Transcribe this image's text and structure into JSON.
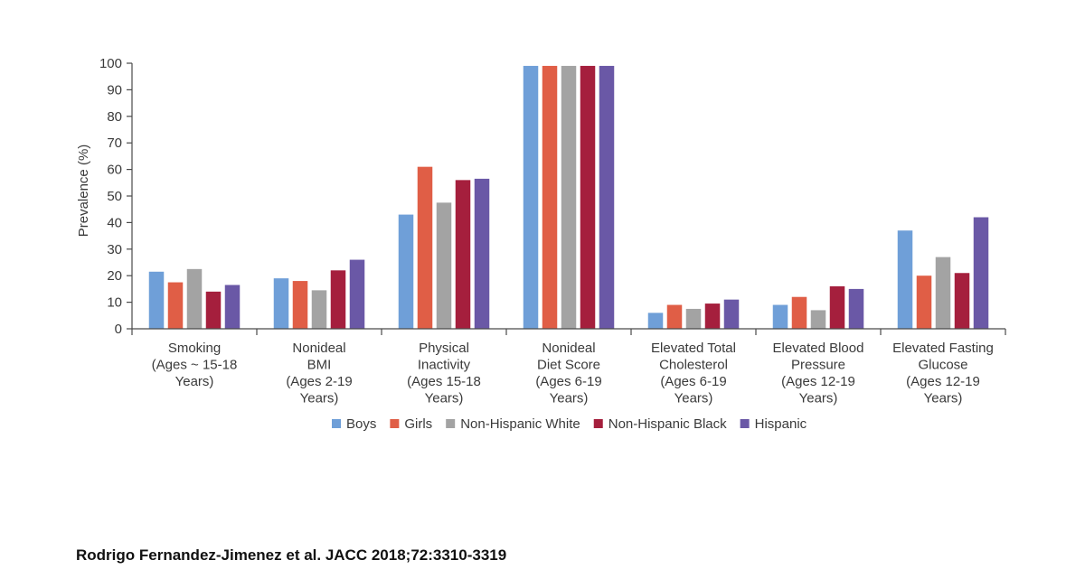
{
  "chart_data": {
    "type": "bar",
    "title": "",
    "xlabel": "",
    "ylabel": "Prevalence (%)",
    "ylim": [
      0,
      100
    ],
    "yticks": [
      0,
      10,
      20,
      30,
      40,
      50,
      60,
      70,
      80,
      90,
      100
    ],
    "grid": false,
    "legend_position": "bottom",
    "categories": [
      [
        "Smoking",
        "(Ages ~ 15-18",
        "Years)"
      ],
      [
        "Nonideal",
        "BMI",
        "(Ages 2-19",
        "Years)"
      ],
      [
        "Physical",
        "Inactivity",
        "(Ages 15-18",
        "Years)"
      ],
      [
        "Nonideal",
        "Diet Score",
        "(Ages 6-19",
        "Years)"
      ],
      [
        "Elevated Total",
        "Cholesterol",
        "(Ages 6-19",
        "Years)"
      ],
      [
        "Elevated Blood",
        "Pressure",
        "(Ages 12-19",
        "Years)"
      ],
      [
        "Elevated Fasting",
        "Glucose",
        "(Ages 12-19",
        "Years)"
      ]
    ],
    "series": [
      {
        "name": "Boys",
        "color": "#6f9fd8",
        "values": [
          21.5,
          19,
          43,
          99,
          6,
          9,
          37
        ]
      },
      {
        "name": "Girls",
        "color": "#e05e46",
        "values": [
          17.5,
          18,
          61,
          99,
          9,
          12,
          20
        ]
      },
      {
        "name": "Non-Hispanic White",
        "color": "#a3a3a3",
        "values": [
          22.5,
          14.5,
          47.5,
          99,
          7.5,
          7,
          27
        ]
      },
      {
        "name": "Non-Hispanic Black",
        "color": "#a51f3d",
        "values": [
          14,
          22,
          56,
          99,
          9.5,
          16,
          21
        ]
      },
      {
        "name": "Hispanic",
        "color": "#6a58a6",
        "values": [
          16.5,
          26,
          56.5,
          99,
          11,
          15,
          42
        ]
      }
    ]
  },
  "citation": "Rodrigo Fernandez-Jimenez et al. JACC 2018;72:3310-3319"
}
